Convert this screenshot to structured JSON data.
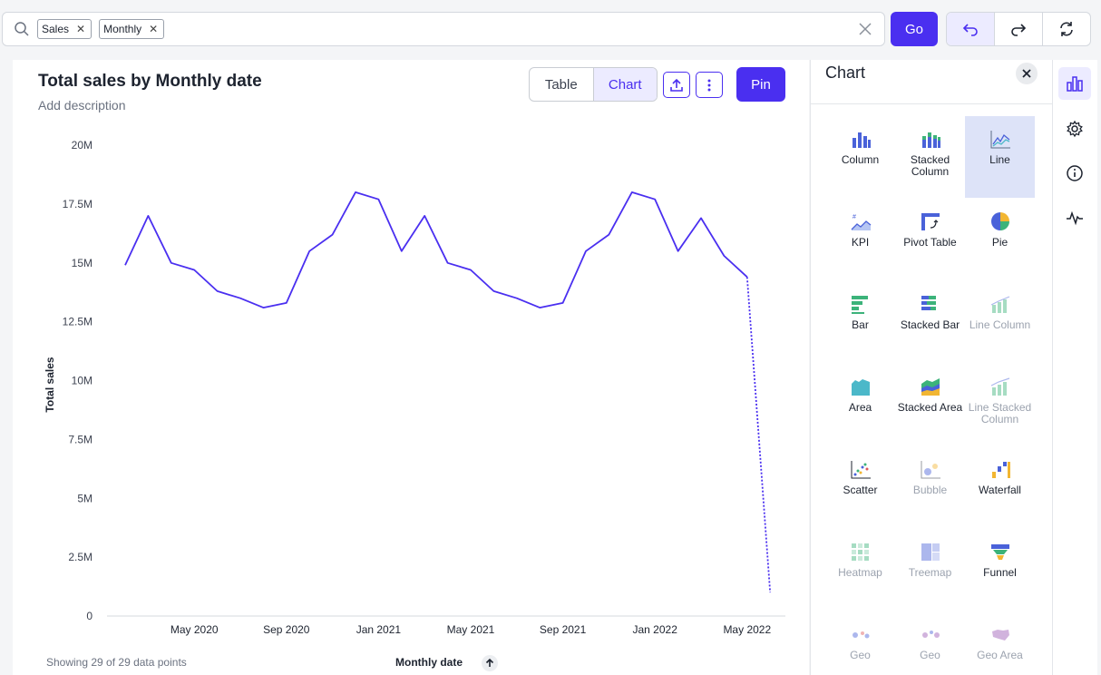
{
  "search": {
    "tokens": [
      "Sales",
      "Monthly"
    ],
    "go_label": "Go"
  },
  "card": {
    "title": "Total sales by Monthly date",
    "description": "Add description",
    "view_toggle": {
      "table": "Table",
      "chart": "Chart",
      "active": "Chart"
    },
    "pin_label": "Pin",
    "footer_note": "Showing 29 of 29 data points"
  },
  "chart_data": {
    "type": "line",
    "title": "Total sales by Monthly date",
    "xlabel": "Monthly date",
    "ylabel": "Total sales",
    "ylim": [
      0,
      20000000
    ],
    "y_ticks": [
      "0",
      "2.5M",
      "5M",
      "7.5M",
      "10M",
      "12.5M",
      "15M",
      "17.5M",
      "20M"
    ],
    "x_ticks": [
      "May 2020",
      "Sep 2020",
      "Jan 2021",
      "May 2021",
      "Sep 2021",
      "Jan 2022",
      "May 2022"
    ],
    "x": [
      "Feb 2020",
      "Mar 2020",
      "Apr 2020",
      "May 2020",
      "Jun 2020",
      "Jul 2020",
      "Aug 2020",
      "Sep 2020",
      "Oct 2020",
      "Nov 2020",
      "Dec 2020",
      "Jan 2021",
      "Feb 2021",
      "Mar 2021",
      "Apr 2021",
      "May 2021",
      "Jun 2021",
      "Jul 2021",
      "Aug 2021",
      "Sep 2021",
      "Oct 2021",
      "Nov 2021",
      "Dec 2021",
      "Jan 2022",
      "Feb 2022",
      "Mar 2022",
      "Apr 2022",
      "May 2022",
      "Jun 2022"
    ],
    "series": [
      {
        "values": [
          14900000,
          17000000,
          15000000,
          14700000,
          13800000,
          13500000,
          13100000,
          13300000,
          15500000,
          16200000,
          18000000,
          17700000,
          15500000,
          17000000,
          15000000,
          14700000,
          13800000,
          13500000,
          13100000,
          13300000,
          15500000,
          16200000,
          18000000,
          17700000,
          15500000,
          16900000,
          15300000,
          14400000,
          1000000
        ],
        "color": "#4a2ff0",
        "dotted_last_segment": true
      }
    ],
    "grid": false
  },
  "panel": {
    "title": "Chart",
    "tiles": [
      {
        "label": "Column",
        "icon": "column-chart-icon",
        "selected": false,
        "disabled": false
      },
      {
        "label": "Stacked Column",
        "icon": "stacked-column-icon",
        "selected": false,
        "disabled": false
      },
      {
        "label": "Line",
        "icon": "line-chart-icon",
        "selected": true,
        "disabled": false
      },
      {
        "label": "KPI",
        "icon": "kpi-icon",
        "selected": false,
        "disabled": false
      },
      {
        "label": "Pivot Table",
        "icon": "pivot-table-icon",
        "selected": false,
        "disabled": false
      },
      {
        "label": "Pie",
        "icon": "pie-chart-icon",
        "selected": false,
        "disabled": false
      },
      {
        "label": "Bar",
        "icon": "bar-chart-icon",
        "selected": false,
        "disabled": false
      },
      {
        "label": "Stacked Bar",
        "icon": "stacked-bar-icon",
        "selected": false,
        "disabled": false
      },
      {
        "label": "Line Column",
        "icon": "line-column-icon",
        "selected": false,
        "disabled": true
      },
      {
        "label": "Area",
        "icon": "area-chart-icon",
        "selected": false,
        "disabled": false
      },
      {
        "label": "Stacked Area",
        "icon": "stacked-area-icon",
        "selected": false,
        "disabled": false
      },
      {
        "label": "Line Stacked Column",
        "icon": "line-stacked-column-icon",
        "selected": false,
        "disabled": true
      },
      {
        "label": "Scatter",
        "icon": "scatter-chart-icon",
        "selected": false,
        "disabled": false
      },
      {
        "label": "Bubble",
        "icon": "bubble-chart-icon",
        "selected": false,
        "disabled": true
      },
      {
        "label": "Waterfall",
        "icon": "waterfall-chart-icon",
        "selected": false,
        "disabled": false
      },
      {
        "label": "Heatmap",
        "icon": "heatmap-icon",
        "selected": false,
        "disabled": true
      },
      {
        "label": "Treemap",
        "icon": "treemap-icon",
        "selected": false,
        "disabled": true
      },
      {
        "label": "Funnel",
        "icon": "funnel-chart-icon",
        "selected": false,
        "disabled": false
      },
      {
        "label": "Geo",
        "icon": "geo-bubble-icon",
        "selected": false,
        "disabled": true
      },
      {
        "label": "Geo",
        "icon": "geo-heatmap-icon",
        "selected": false,
        "disabled": true
      },
      {
        "label": "Geo Area",
        "icon": "geo-area-icon",
        "selected": false,
        "disabled": true
      }
    ]
  },
  "rail": {
    "items": [
      "chart-config-icon",
      "settings-gear-icon",
      "info-icon",
      "activity-icon"
    ],
    "active": "chart-config-icon"
  },
  "colors": {
    "accent": "#4a2ff0",
    "accent_light": "#ecebff"
  }
}
